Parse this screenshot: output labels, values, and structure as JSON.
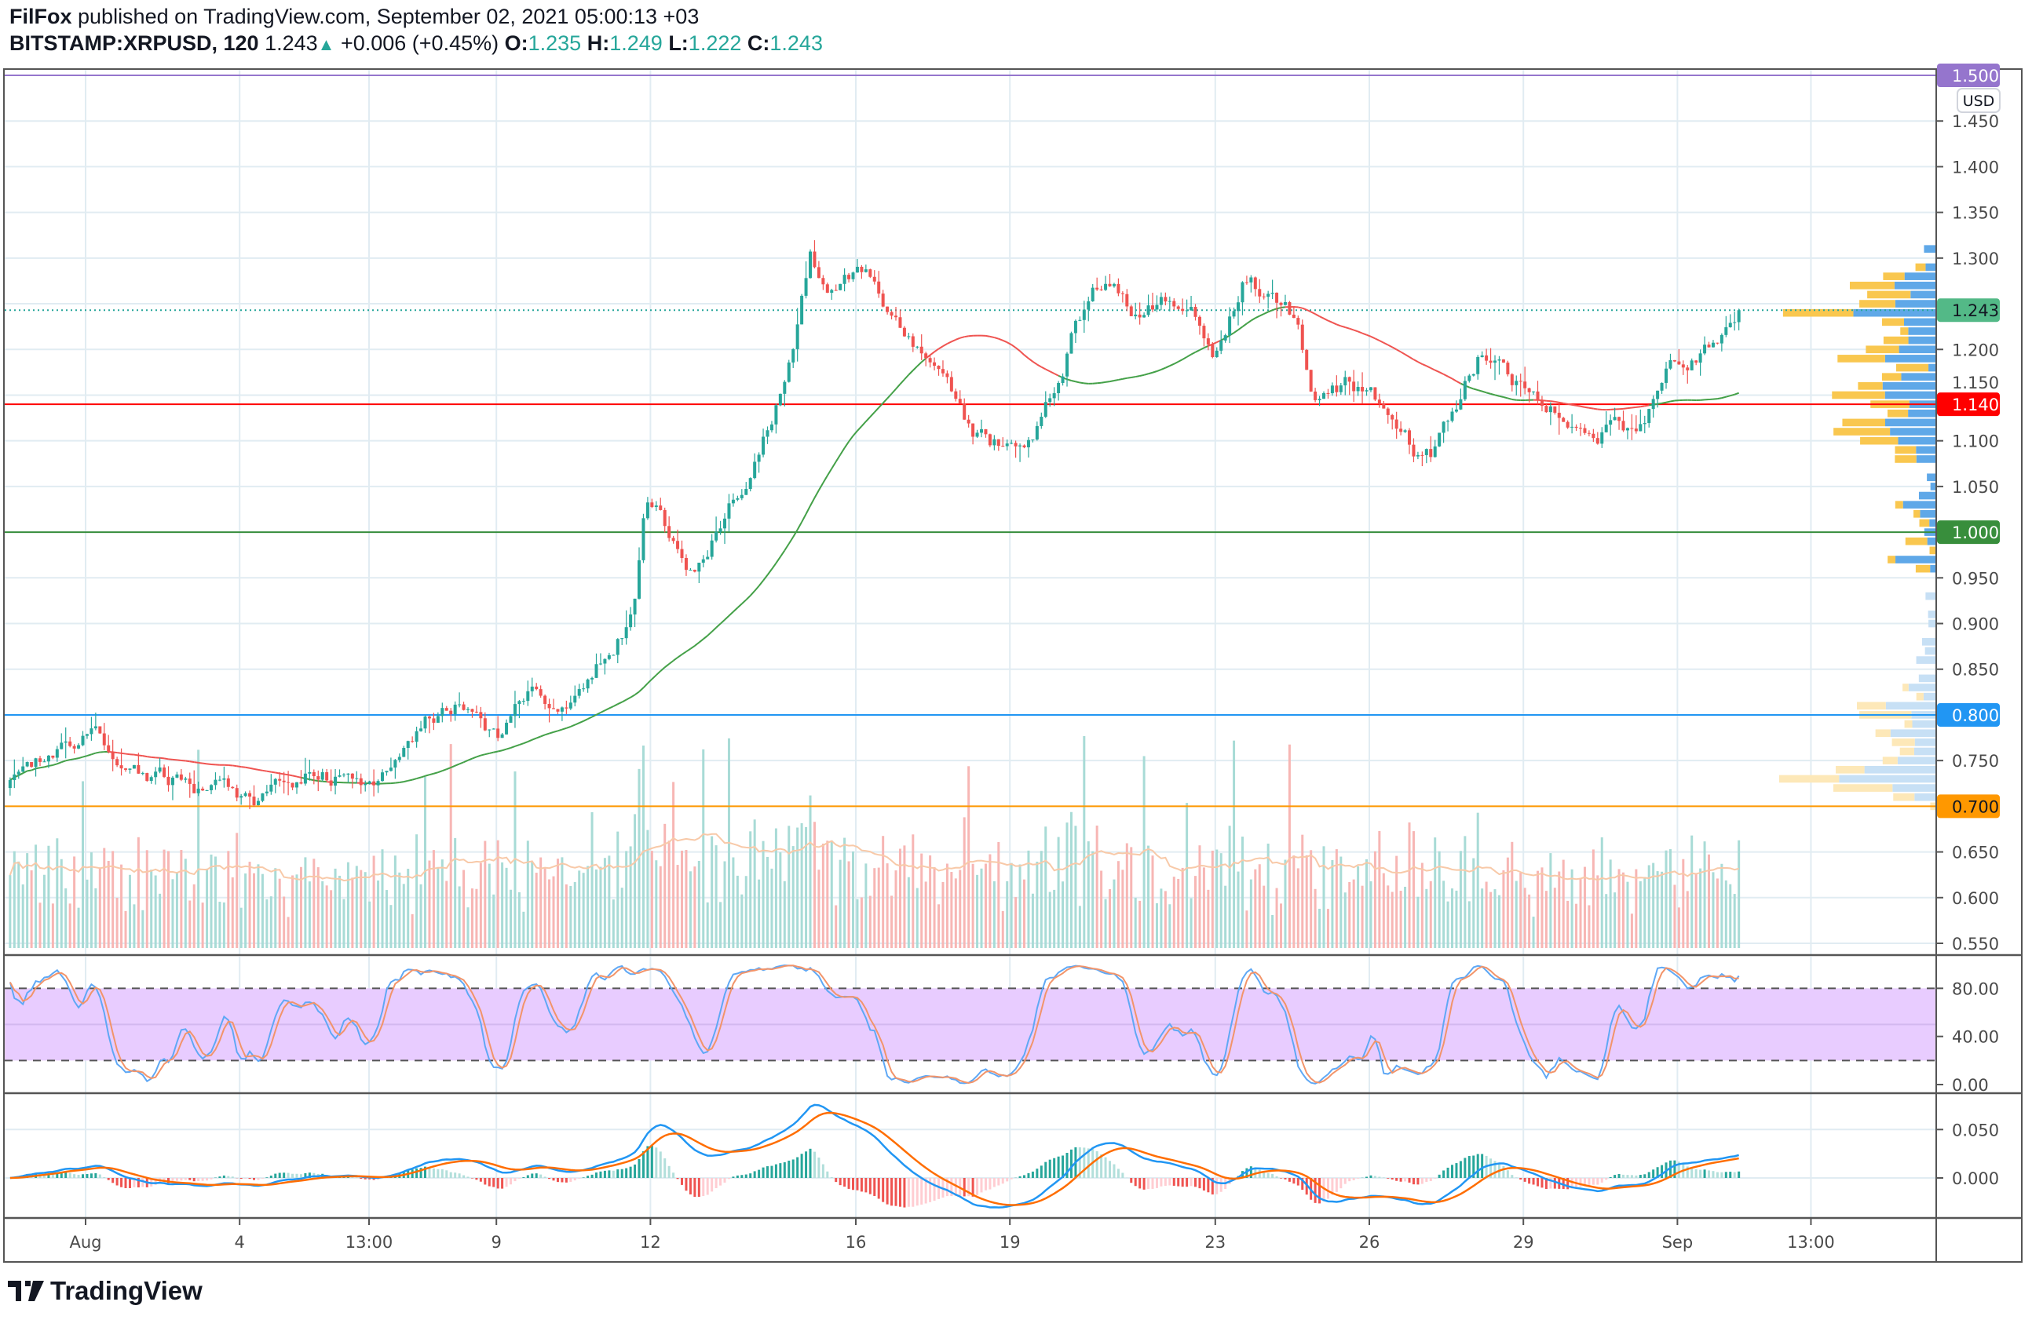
{
  "header": {
    "author": "FilFox",
    "published_text": "published on TradingView.com, September 02, 2021 05:00:13 +03",
    "symbol": "BITSTAMP:XRPUSD, 120",
    "last": "1.243",
    "change": "+0.006 (+0.45%)",
    "o_label": "O:",
    "o": "1.235",
    "h_label": "H:",
    "h": "1.249",
    "l_label": "L:",
    "l": "1.222",
    "c_label": "C:",
    "c": "1.243"
  },
  "currency_button": "USD",
  "logo_text": "TradingView",
  "colors": {
    "up": "#26a69a",
    "down": "#ef5350",
    "grid": "#e1ecf2",
    "stoch_band": "#e8ccff"
  },
  "chart_data": {
    "type": "candlestick",
    "title": "BITSTAMP:XRPUSD, 120",
    "ylim": [
      0.53,
      1.52
    ],
    "last_price": 1.243,
    "price_ticks": [
      "1.450",
      "1.400",
      "1.350",
      "1.300",
      "1.200",
      "1.150",
      "1.100",
      "1.050",
      "0.950",
      "0.900",
      "0.850",
      "0.750",
      "0.650",
      "0.600",
      "0.550"
    ],
    "time_ticks": [
      {
        "label": "Aug",
        "day": 0
      },
      {
        "label": "4",
        "day": 3
      },
      {
        "label": "13:00",
        "day": 5.52
      },
      {
        "label": "9",
        "day": 8
      },
      {
        "label": "12",
        "day": 11
      },
      {
        "label": "16",
        "day": 15
      },
      {
        "label": "19",
        "day": 18
      },
      {
        "label": "23",
        "day": 22
      },
      {
        "label": "26",
        "day": 25
      },
      {
        "label": "29",
        "day": 28
      },
      {
        "label": "Sep",
        "day": 31
      },
      {
        "label": "13:00",
        "day": 33.6
      }
    ],
    "levels": [
      {
        "price": 1.5,
        "label": "1.500",
        "color": "#9575cd",
        "text": "#ffffff"
      },
      {
        "price": 1.14,
        "label": "1.140",
        "color": "#ff0000",
        "text": "#ffffff"
      },
      {
        "price": 1.0,
        "label": "1.000",
        "color": "#388e3c",
        "text": "#ffffff"
      },
      {
        "price": 0.8,
        "label": "0.800",
        "color": "#2196f3",
        "text": "#ffffff"
      },
      {
        "price": 0.7,
        "label": "0.700",
        "color": "#ff9800",
        "text": "#131722"
      }
    ],
    "last_label": {
      "label": "1.243",
      "color": "#53b987"
    },
    "price_path_days_vs_close": [
      [
        -1.47,
        0.72
      ],
      [
        -0.66,
        0.75
      ],
      [
        0.23,
        0.775
      ],
      [
        1.11,
        0.745
      ],
      [
        2.12,
        0.72
      ],
      [
        3.38,
        0.705
      ],
      [
        4.14,
        0.735
      ],
      [
        5.65,
        0.735
      ],
      [
        6.66,
        0.79
      ],
      [
        7.29,
        0.82
      ],
      [
        8.05,
        0.765
      ],
      [
        8.56,
        0.82
      ],
      [
        9.56,
        0.81
      ],
      [
        10.45,
        0.89
      ],
      [
        10.7,
        0.95
      ],
      [
        10.9,
        1.05
      ],
      [
        11.46,
        0.99
      ],
      [
        11.84,
        0.95
      ],
      [
        12.47,
        1.03
      ],
      [
        12.97,
        1.08
      ],
      [
        13.48,
        1.15
      ],
      [
        13.86,
        1.24
      ],
      [
        14.11,
        1.31
      ],
      [
        14.49,
        1.26
      ],
      [
        15.24,
        1.29
      ],
      [
        15.75,
        1.22
      ],
      [
        16.51,
        1.19
      ],
      [
        17.14,
        1.11
      ],
      [
        17.64,
        1.09
      ],
      [
        18.52,
        1.12
      ],
      [
        19.28,
        1.23
      ],
      [
        19.79,
        1.27
      ],
      [
        20.54,
        1.24
      ],
      [
        21.55,
        1.26
      ],
      [
        21.93,
        1.2
      ],
      [
        22.56,
        1.28
      ],
      [
        23.57,
        1.23
      ],
      [
        23.95,
        1.15
      ],
      [
        24.58,
        1.16
      ],
      [
        25.09,
        1.15
      ],
      [
        25.84,
        1.09
      ],
      [
        26.22,
        1.08
      ],
      [
        27.1,
        1.19
      ],
      [
        27.86,
        1.16
      ],
      [
        28.62,
        1.14
      ],
      [
        29.63,
        1.12
      ],
      [
        30.13,
        1.11
      ],
      [
        30.76,
        1.17
      ],
      [
        31.4,
        1.2
      ],
      [
        32.23,
        1.243
      ]
    ],
    "bars_per_day": 12,
    "stoch": {
      "ticks": [
        "80.00",
        "40.00",
        "0.00"
      ],
      "upper": 80,
      "lower": 20
    },
    "macd": {
      "ticks": [
        "0.050",
        "0.000"
      ]
    }
  }
}
